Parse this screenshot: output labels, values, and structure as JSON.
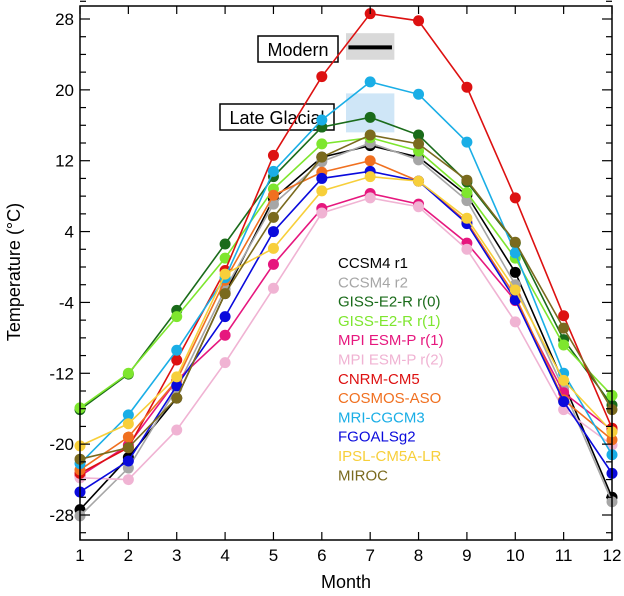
{
  "chart_data": {
    "type": "line",
    "xlabel": "Month",
    "ylabel": "Temperature (°C)",
    "xlim": [
      1,
      12
    ],
    "ylim": [
      -30,
      30
    ],
    "x": [
      1,
      2,
      3,
      4,
      5,
      6,
      7,
      8,
      9,
      10,
      11,
      12
    ],
    "xticks": [
      1,
      2,
      3,
      4,
      5,
      6,
      7,
      8,
      9,
      10,
      11,
      12
    ],
    "yticks": [
      -28,
      -20,
      -12,
      -4,
      4,
      12,
      20,
      28
    ],
    "grid": false,
    "legend_placement": "center",
    "series": [
      {
        "name": "CCSM4 r1",
        "color": "#000000",
        "values": [
          -27.4,
          -21.5,
          -14.8,
          -3.0,
          7.7,
          12.4,
          13.7,
          12.4,
          8.1,
          -0.6,
          -13.1,
          -26.0
        ]
      },
      {
        "name": "CCSM4 r2",
        "color": "#a6a6a6",
        "values": [
          -28.1,
          -22.7,
          -13.7,
          -2.5,
          7.1,
          11.9,
          14.0,
          12.1,
          7.5,
          -2.0,
          -13.8,
          -26.5
        ]
      },
      {
        "name": "GISS-E2-R r(0)",
        "color": "#1a6b1a",
        "values": [
          -16.1,
          -12.1,
          -4.9,
          2.6,
          10.2,
          15.8,
          16.9,
          14.9,
          9.6,
          2.7,
          -8.2,
          -15.6
        ]
      },
      {
        "name": "GISS-E2-R r(1)",
        "color": "#7ee62e",
        "values": [
          -15.9,
          -12.0,
          -5.6,
          1.0,
          8.8,
          13.9,
          14.6,
          13.1,
          8.4,
          1.0,
          -8.8,
          -14.5
        ]
      },
      {
        "name": "MPI ESM-P r(1)",
        "color": "#e6177e",
        "values": [
          -23.6,
          -20.1,
          -12.8,
          -7.7,
          0.3,
          6.6,
          8.3,
          7.1,
          2.7,
          -3.8,
          -14.2,
          -18.4
        ]
      },
      {
        "name": "MPI ESM-P r(2)",
        "color": "#f0b3d3",
        "values": [
          -23.8,
          -24.0,
          -18.4,
          -10.8,
          -2.4,
          6.1,
          7.8,
          6.8,
          2.0,
          -6.2,
          -16.1,
          -20.1
        ]
      },
      {
        "name": "CNRM-CM5",
        "color": "#dd1111",
        "values": [
          -23.3,
          -20.4,
          -10.5,
          -0.4,
          12.6,
          21.5,
          28.6,
          27.8,
          20.3,
          7.8,
          -5.5,
          -18.2
        ]
      },
      {
        "name": "COSMOS-ASO",
        "color": "#f07020",
        "values": [
          -22.9,
          -19.2,
          -12.8,
          -1.5,
          8.1,
          10.7,
          12.0,
          9.7,
          5.1,
          -3.3,
          -15.0,
          -19.5
        ]
      },
      {
        "name": "MRI-CGCM3",
        "color": "#1aaee6",
        "values": [
          -22.2,
          -16.7,
          -9.4,
          -1.2,
          10.8,
          16.6,
          20.9,
          19.5,
          14.1,
          1.6,
          -12.0,
          -21.2
        ]
      },
      {
        "name": "FGOALSg2",
        "color": "#0a0adc",
        "values": [
          -25.4,
          -21.9,
          -13.4,
          -5.6,
          4.0,
          10.0,
          10.8,
          9.7,
          4.9,
          -3.7,
          -15.2,
          -23.3
        ]
      },
      {
        "name": "IPSL-CM5A-LR",
        "color": "#f7cf3a",
        "values": [
          -20.2,
          -17.7,
          -12.4,
          -0.8,
          2.1,
          8.6,
          10.2,
          9.7,
          5.5,
          -2.6,
          -12.8,
          -18.6
        ]
      },
      {
        "name": "MIROC",
        "color": "#7a6a1e",
        "values": [
          -21.7,
          -20.4,
          -14.8,
          -3.0,
          5.6,
          12.4,
          14.9,
          13.9,
          9.8,
          2.8,
          -6.9,
          -16.1
        ]
      }
    ],
    "annotations": [
      {
        "label": "Modern",
        "x_range": [
          6.5,
          7.5
        ],
        "y_range": [
          23.4,
          26.4
        ],
        "mean": 24.8,
        "fill": "#d9d9d9"
      },
      {
        "label": "Late Glacial",
        "x_range": [
          6.5,
          7.5
        ],
        "y_range": [
          15.2,
          19.6
        ],
        "fill": "#cfe6f7"
      }
    ]
  }
}
